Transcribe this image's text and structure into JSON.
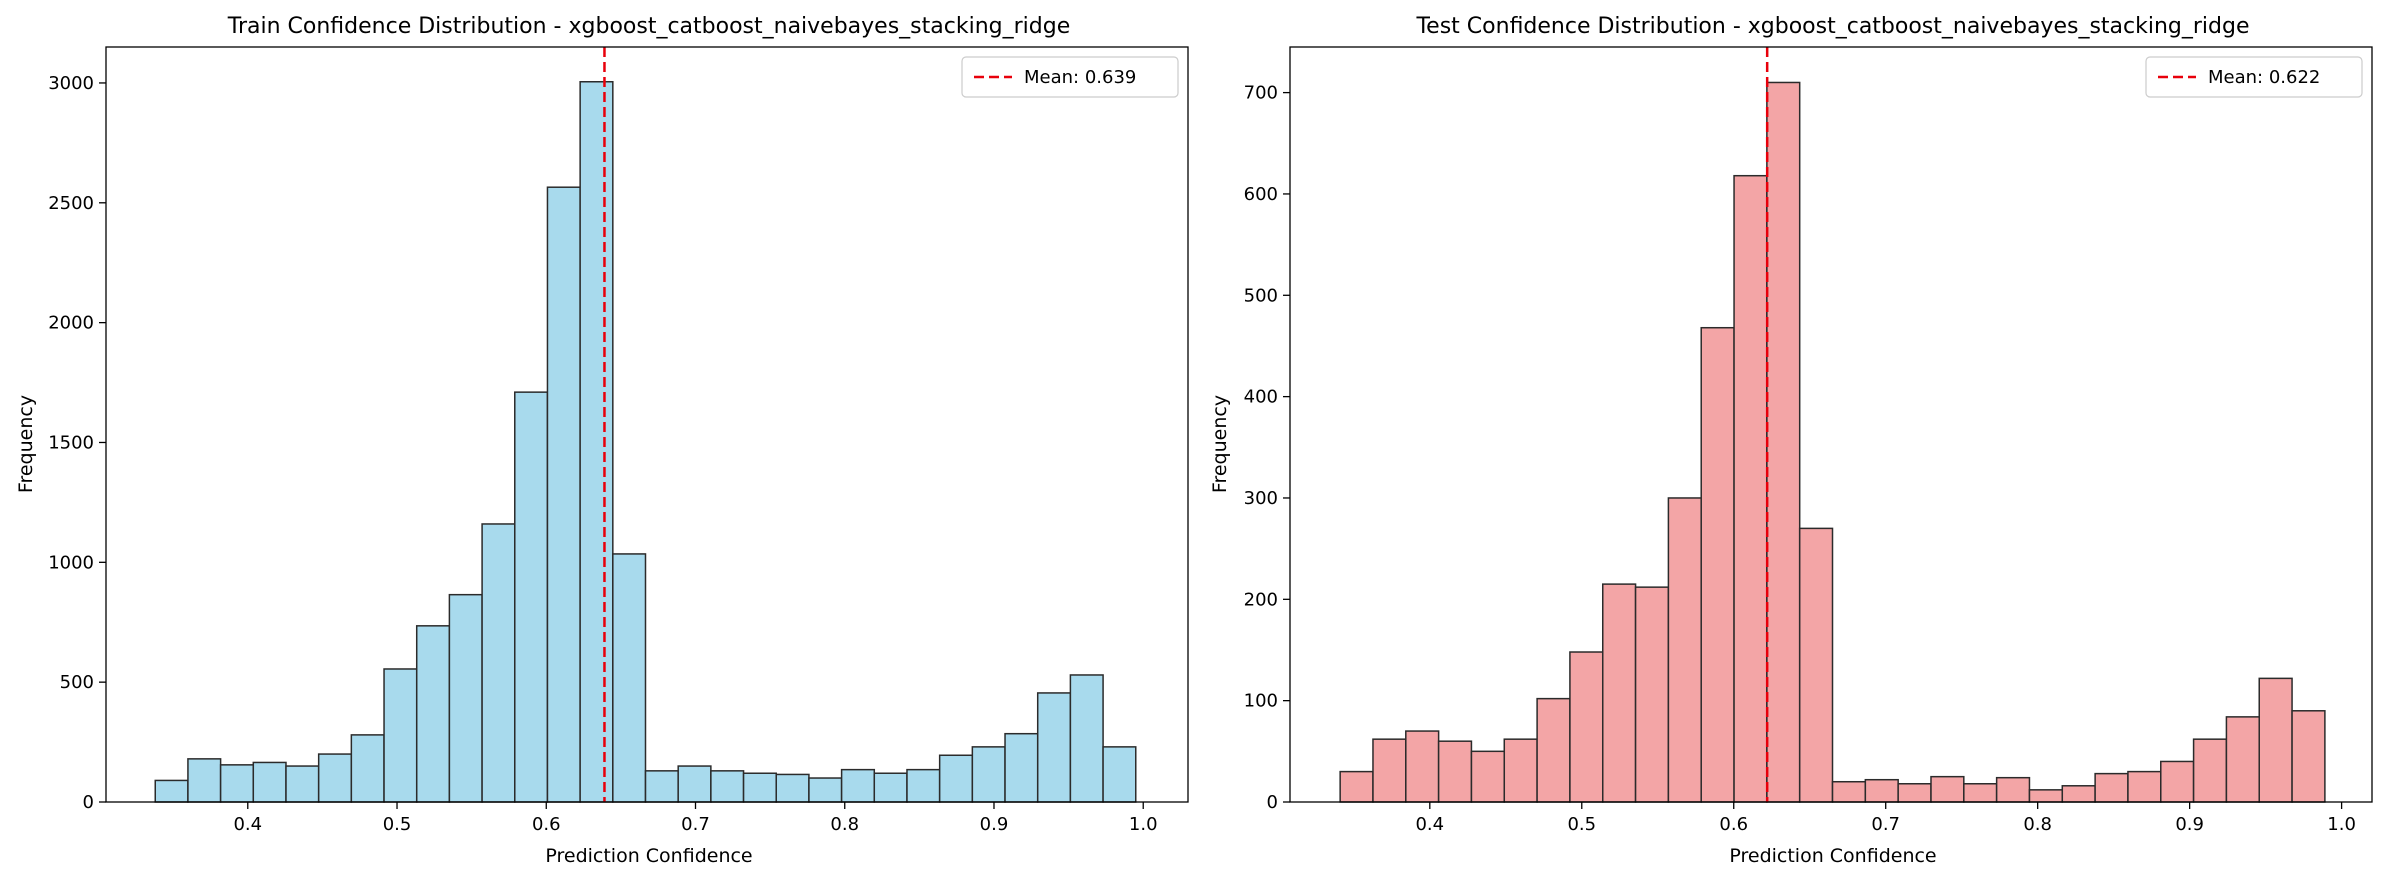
{
  "chart_data": [
    {
      "type": "bar",
      "title": "Train Confidence Distribution - xgboost_catboost_naivebayes_stacking_ridge",
      "xlabel": "Prediction Confidence",
      "ylabel": "Frequency",
      "xlim": [
        0.305,
        1.03
      ],
      "ylim": [
        0,
        3150
      ],
      "xticks": [
        "0.4",
        "0.5",
        "0.6",
        "0.7",
        "0.8",
        "0.9",
        "1.0"
      ],
      "yticks": [
        "0",
        "500",
        "1000",
        "1500",
        "2000",
        "2500",
        "3000"
      ],
      "bin_start": 0.338,
      "bin_width": 0.0219,
      "values": [
        90,
        180,
        155,
        165,
        150,
        200,
        280,
        555,
        735,
        865,
        1160,
        1710,
        2565,
        3005,
        1035,
        130,
        150,
        130,
        120,
        115,
        100,
        135,
        120,
        135,
        195,
        230,
        285,
        455,
        530,
        230
      ],
      "bar_color": "#a8daed",
      "edge_color": "#2b2b2b",
      "mean_line": {
        "x": 0.639,
        "color": "#e8000b",
        "label": "Mean: 0.639"
      },
      "legend": "top-right"
    },
    {
      "type": "bar",
      "title": "Test Confidence Distribution - xgboost_catboost_naivebayes_stacking_ridge",
      "xlabel": "Prediction Confidence",
      "ylabel": "Frequency",
      "xlim": [
        0.308,
        1.02
      ],
      "ylim": [
        0,
        745
      ],
      "xticks": [
        "0.4",
        "0.5",
        "0.6",
        "0.7",
        "0.8",
        "0.9",
        "1.0"
      ],
      "yticks": [
        "0",
        "100",
        "200",
        "300",
        "400",
        "500",
        "600",
        "700"
      ],
      "bin_start": 0.341,
      "bin_width": 0.0216,
      "values": [
        30,
        62,
        70,
        60,
        50,
        62,
        102,
        148,
        215,
        212,
        300,
        468,
        618,
        710,
        270,
        20,
        22,
        18,
        25,
        18,
        24,
        12,
        16,
        28,
        30,
        40,
        62,
        84,
        122,
        90
      ],
      "bar_color": "#f3a5a6",
      "edge_color": "#2b2b2b",
      "mean_line": {
        "x": 0.622,
        "color": "#e8000b",
        "label": "Mean: 0.622"
      },
      "legend": "top-right"
    }
  ]
}
